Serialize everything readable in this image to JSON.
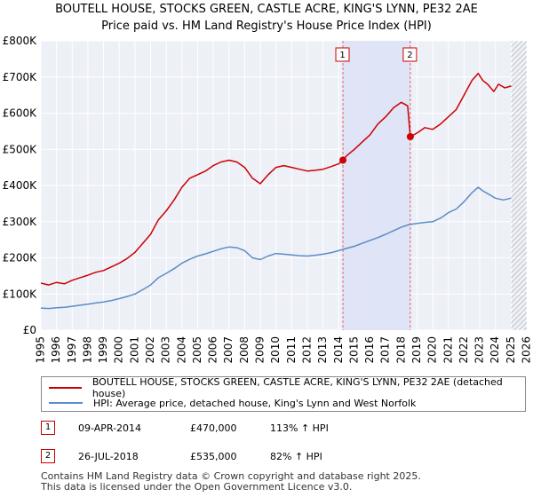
{
  "title": "BOUTELL HOUSE, STOCKS GREEN, CASTLE ACRE, KING'S LYNN, PE32 2AE",
  "subtitle": "Price paid vs. HM Land Registry's House Price Index (HPI)",
  "chart_data": {
    "type": "line",
    "xlim": [
      1995,
      2026
    ],
    "ylim": [
      0,
      800000
    ],
    "y_ticks": [
      0,
      100000,
      200000,
      300000,
      400000,
      500000,
      600000,
      700000,
      800000
    ],
    "y_tick_labels": [
      "£0",
      "£100K",
      "£200K",
      "£300K",
      "£400K",
      "£500K",
      "£600K",
      "£700K",
      "£800K"
    ],
    "x_ticks": [
      1995,
      1996,
      1997,
      1998,
      1999,
      2000,
      2001,
      2002,
      2003,
      2004,
      2005,
      2006,
      2007,
      2008,
      2009,
      2010,
      2011,
      2012,
      2013,
      2014,
      2015,
      2016,
      2017,
      2018,
      2019,
      2020,
      2021,
      2022,
      2023,
      2024,
      2025,
      2026
    ],
    "x_tick_labels": [
      "1995",
      "1996",
      "1997",
      "1998",
      "1999",
      "2000",
      "2001",
      "2002",
      "2003",
      "2004",
      "2005",
      "2006",
      "2007",
      "2008",
      "2009",
      "2010",
      "2011",
      "2012",
      "2013",
      "2014",
      "2015",
      "2016",
      "2017",
      "2018",
      "2019",
      "2020",
      "2021",
      "2022",
      "2023",
      "2024",
      "2025",
      "2026"
    ],
    "grid": true,
    "shaded_period": [
      2014.27,
      2018.57
    ],
    "future_hatch_from": 2025.0,
    "series": [
      {
        "name": "BOUTELL HOUSE, STOCKS GREEN, CASTLE ACRE, KING'S LYNN, PE32 2AE (detached house)",
        "color": "#cc0000",
        "x": [
          1995.0,
          1995.5,
          1996.0,
          1996.5,
          1997.0,
          1997.5,
          1998.0,
          1998.5,
          1999.0,
          1999.5,
          2000.0,
          2000.5,
          2001.0,
          2001.5,
          2002.0,
          2002.5,
          2003.0,
          2003.5,
          2004.0,
          2004.5,
          2005.0,
          2005.5,
          2006.0,
          2006.5,
          2007.0,
          2007.5,
          2008.0,
          2008.5,
          2009.0,
          2009.5,
          2010.0,
          2010.5,
          2011.0,
          2011.5,
          2012.0,
          2012.5,
          2013.0,
          2013.5,
          2014.0,
          2014.27,
          2014.5,
          2015.0,
          2015.5,
          2016.0,
          2016.5,
          2017.0,
          2017.5,
          2018.0,
          2018.4,
          2018.57,
          2019.0,
          2019.5,
          2020.0,
          2020.5,
          2021.0,
          2021.5,
          2022.0,
          2022.5,
          2022.9,
          2023.2,
          2023.5,
          2023.9,
          2024.2,
          2024.6,
          2025.0
        ],
        "y": [
          130000,
          125000,
          132000,
          128000,
          138000,
          145000,
          152000,
          160000,
          165000,
          175000,
          185000,
          198000,
          215000,
          240000,
          265000,
          305000,
          330000,
          360000,
          395000,
          420000,
          430000,
          440000,
          455000,
          465000,
          470000,
          465000,
          450000,
          420000,
          405000,
          430000,
          450000,
          455000,
          450000,
          445000,
          440000,
          442000,
          445000,
          452000,
          460000,
          470000,
          482000,
          500000,
          520000,
          540000,
          570000,
          590000,
          615000,
          630000,
          620000,
          535000,
          545000,
          560000,
          555000,
          570000,
          590000,
          610000,
          650000,
          690000,
          710000,
          690000,
          680000,
          660000,
          680000,
          670000,
          675000
        ]
      },
      {
        "name": "HPI: Average price, detached house, King's Lynn and West Norfolk",
        "color": "#5b8cc6",
        "x": [
          1995.0,
          1995.5,
          1996.0,
          1996.5,
          1997.0,
          1997.5,
          1998.0,
          1998.5,
          1999.0,
          1999.5,
          2000.0,
          2000.5,
          2001.0,
          2001.5,
          2002.0,
          2002.5,
          2003.0,
          2003.5,
          2004.0,
          2004.5,
          2005.0,
          2005.5,
          2006.0,
          2006.5,
          2007.0,
          2007.5,
          2008.0,
          2008.5,
          2009.0,
          2009.5,
          2010.0,
          2010.5,
          2011.0,
          2011.5,
          2012.0,
          2012.5,
          2013.0,
          2013.5,
          2014.0,
          2014.5,
          2015.0,
          2015.5,
          2016.0,
          2016.5,
          2017.0,
          2017.5,
          2018.0,
          2018.5,
          2019.0,
          2019.5,
          2020.0,
          2020.5,
          2021.0,
          2021.5,
          2022.0,
          2022.5,
          2022.9,
          2023.2,
          2023.6,
          2024.0,
          2024.5,
          2025.0
        ],
        "y": [
          61000,
          60000,
          62000,
          63000,
          66000,
          69000,
          72000,
          75000,
          78000,
          82000,
          87000,
          93000,
          100000,
          112000,
          125000,
          145000,
          157000,
          170000,
          185000,
          196000,
          205000,
          211000,
          218000,
          225000,
          230000,
          228000,
          220000,
          200000,
          195000,
          205000,
          212000,
          210000,
          208000,
          206000,
          205000,
          207000,
          210000,
          214000,
          220000,
          226000,
          232000,
          240000,
          248000,
          256000,
          265000,
          275000,
          285000,
          292000,
          295000,
          298000,
          300000,
          310000,
          325000,
          335000,
          355000,
          380000,
          395000,
          385000,
          375000,
          365000,
          360000,
          365000
        ]
      }
    ],
    "sales": [
      {
        "label": "1",
        "x": 2014.27,
        "y": 470000,
        "date": "09-APR-2014",
        "price": "£470,000",
        "hpi": "113% ↑ HPI"
      },
      {
        "label": "2",
        "x": 2018.57,
        "y": 535000,
        "date": "26-JUL-2018",
        "price": "£535,000",
        "hpi": "82% ↑ HPI"
      }
    ]
  },
  "legend": {
    "red_label": "BOUTELL HOUSE, STOCKS GREEN, CASTLE ACRE, KING'S LYNN, PE32 2AE (detached house)",
    "blue_label": "HPI: Average price, detached house, King's Lynn and West Norfolk"
  },
  "footer": {
    "line1": "Contains HM Land Registry data © Crown copyright and database right 2025.",
    "line2": "This data is licensed under the Open Government Licence v3.0."
  }
}
